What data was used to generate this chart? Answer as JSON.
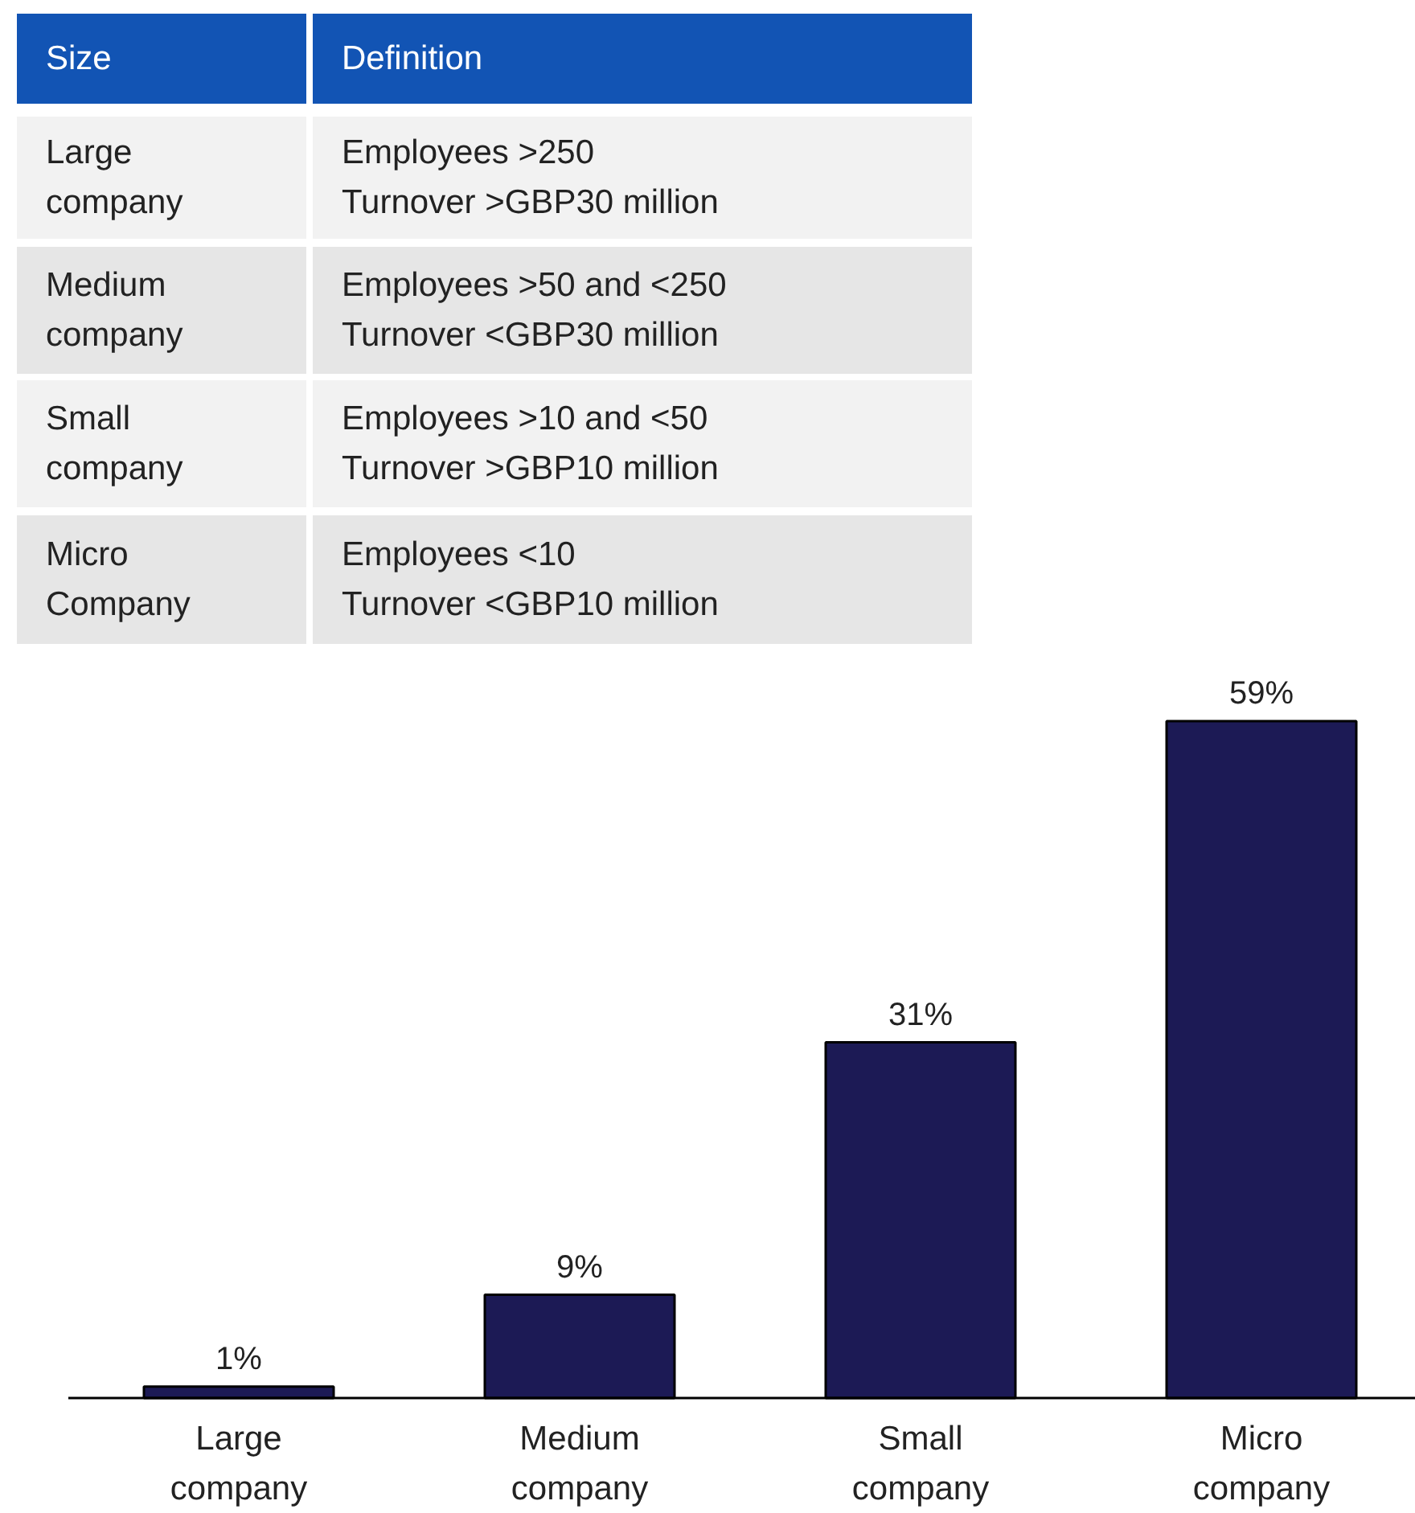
{
  "chart_data": [
    {
      "type": "other",
      "color": "#1254b4",
      "colors": [
        "#f2f2f2",
        "#e6e6e6"
      ],
      "annotations": [
        "Size",
        "Definition",
        "Large\ncompany",
        "Employees >250\nTurnover >GBP30 million",
        "Medium\ncompany",
        "Employees >50 and <250\nTurnover <GBP30 million",
        "Small\ncompany",
        "Employees >10 and <50\nTurnover >GBP10 million",
        "Micro\nCompany",
        "Employees <10\nTurnover  <GBP10 million"
      ]
    },
    {
      "type": "bar",
      "categories": [
        "Large\ncompany",
        "Medium\ncompany",
        "Small\ncompany",
        "Micro\ncompany"
      ],
      "values": [
        1,
        9,
        31,
        59
      ],
      "color": "#1c1a55",
      "value_labels": [
        "1%",
        "9%",
        "31%",
        "59%"
      ]
    }
  ]
}
